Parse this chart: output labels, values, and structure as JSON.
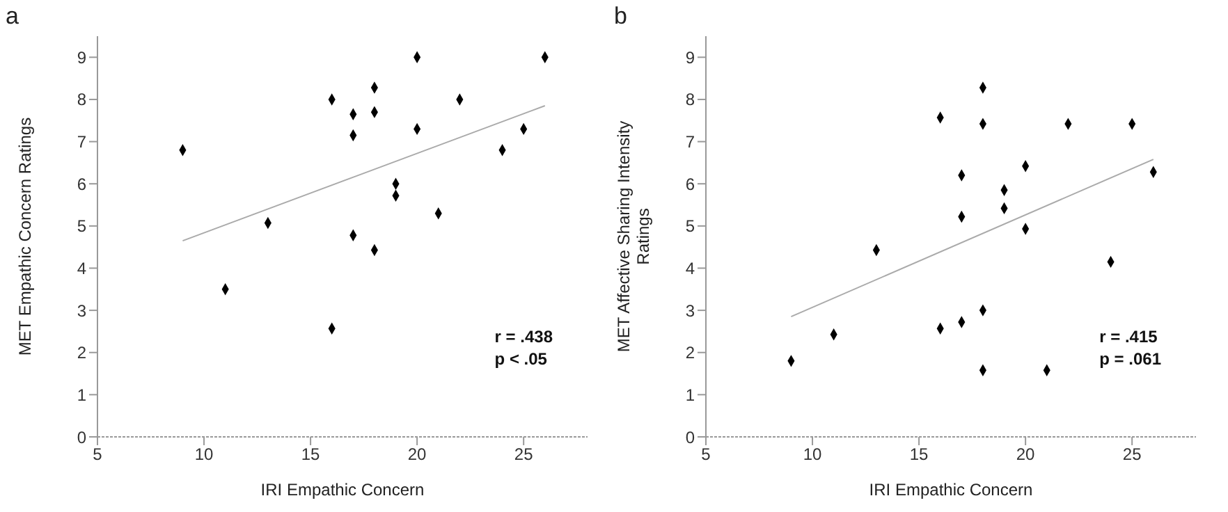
{
  "chart_data": [
    {
      "type": "scatter",
      "title": "a",
      "xlabel": "IRI Empathic Concern",
      "ylabel": "MET Empathic Concern Ratings",
      "grid": false,
      "legend": false,
      "xlim": [
        5,
        28
      ],
      "xticks": [
        5,
        10,
        15,
        20,
        25
      ],
      "ylim": [
        0,
        9.5
      ],
      "yticks": [
        0,
        1,
        2,
        3,
        4,
        5,
        6,
        7,
        8,
        9
      ],
      "annotations": [
        "r = .438",
        "p < .05"
      ],
      "series": [
        {
          "marker": "diamond",
          "color": "#000000",
          "x": [
            9,
            11,
            13,
            16,
            16,
            17,
            17,
            17,
            18,
            18,
            18,
            19,
            19,
            20,
            20,
            21,
            22,
            24,
            25,
            26
          ],
          "values": [
            6.8,
            3.5,
            5.07,
            8.0,
            2.57,
            7.65,
            7.15,
            4.78,
            8.28,
            7.7,
            4.43,
            6.0,
            5.72,
            9.0,
            7.3,
            5.3,
            8.0,
            6.8,
            7.3,
            9.0
          ]
        },
        {
          "type": "line",
          "marker": "none",
          "color": "#aaaaaa",
          "x": [
            9,
            26
          ],
          "values": [
            4.65,
            7.85
          ]
        }
      ]
    },
    {
      "type": "scatter",
      "title": "b",
      "xlabel": "IRI Empathic Concern",
      "ylabel": "MET Affective Sharing Intensity Ratings",
      "grid": false,
      "legend": false,
      "xlim": [
        5,
        28
      ],
      "xticks": [
        5,
        10,
        15,
        20,
        25
      ],
      "ylim": [
        0,
        9.5
      ],
      "yticks": [
        0,
        1,
        2,
        3,
        4,
        5,
        6,
        7,
        8,
        9
      ],
      "annotations": [
        "r = .415",
        "p = .061"
      ],
      "series": [
        {
          "marker": "diamond",
          "color": "#000000",
          "x": [
            9,
            11,
            13,
            16,
            16,
            17,
            17,
            17,
            18,
            18,
            18,
            18,
            19,
            19,
            20,
            20,
            21,
            22,
            24,
            25,
            26
          ],
          "values": [
            1.8,
            2.43,
            4.43,
            7.57,
            2.57,
            6.2,
            5.22,
            2.72,
            8.28,
            7.42,
            3.0,
            1.58,
            5.85,
            5.42,
            6.42,
            4.93,
            1.58,
            7.42,
            4.15,
            7.42,
            6.28
          ]
        },
        {
          "type": "line",
          "marker": "none",
          "color": "#aaaaaa",
          "x": [
            9,
            26
          ],
          "values": [
            2.85,
            6.58
          ]
        }
      ]
    }
  ]
}
